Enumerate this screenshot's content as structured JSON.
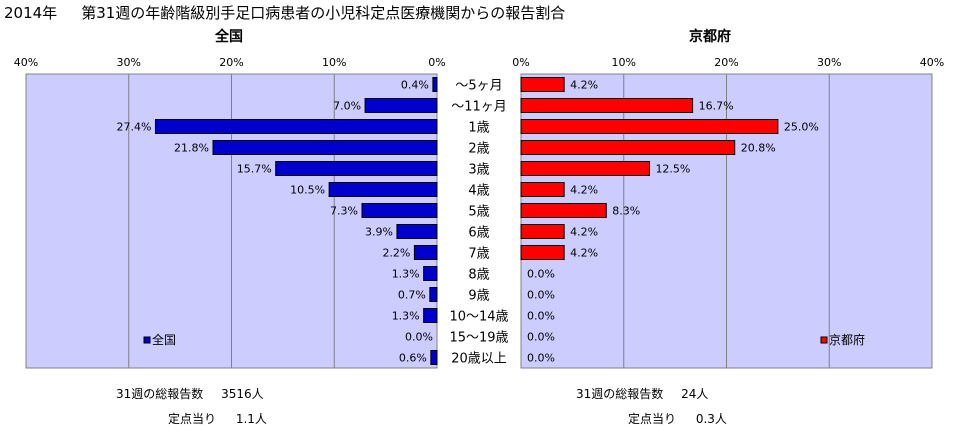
{
  "header": {
    "year": "2014年",
    "title": "第31週の年齢階級別手足口病患者の小児科定点医療機関からの報告割合"
  },
  "chart_data": [
    {
      "type": "bar",
      "orientation": "horizontal",
      "title": "全国",
      "legend": "全国",
      "legend_position": "bottom-left",
      "xlim": [
        0,
        40
      ],
      "ticks": [
        "40%",
        "30%",
        "20%",
        "10%",
        "0%"
      ],
      "direction": "reversed",
      "color": "#0000cc",
      "grid": true,
      "categories": [
        "〜5ヶ月",
        "〜11ヶ月",
        "1歳",
        "2歳",
        "3歳",
        "4歳",
        "5歳",
        "6歳",
        "7歳",
        "8歳",
        "9歳",
        "10〜14歳",
        "15〜19歳",
        "20歳以上"
      ],
      "values": [
        0.4,
        7.0,
        27.4,
        21.8,
        15.7,
        10.5,
        7.3,
        3.9,
        2.2,
        1.3,
        0.7,
        1.3,
        0.0,
        0.6
      ],
      "labels": [
        "0.4%",
        "7.0%",
        "27.4%",
        "21.8%",
        "15.7%",
        "10.5%",
        "7.3%",
        "3.9%",
        "2.2%",
        "1.3%",
        "0.7%",
        "1.3%",
        "0.0%",
        "0.6%"
      ]
    },
    {
      "type": "bar",
      "orientation": "horizontal",
      "title": "京都府",
      "legend": "京都府",
      "legend_position": "bottom-right",
      "xlim": [
        0,
        40
      ],
      "ticks": [
        "0%",
        "10%",
        "20%",
        "30%",
        "40%"
      ],
      "direction": "normal",
      "color": "#ff0000",
      "grid": true,
      "categories": [
        "〜5ヶ月",
        "〜11ヶ月",
        "1歳",
        "2歳",
        "3歳",
        "4歳",
        "5歳",
        "6歳",
        "7歳",
        "8歳",
        "9歳",
        "10〜14歳",
        "15〜19歳",
        "20歳以上"
      ],
      "values": [
        4.2,
        16.7,
        25.0,
        20.8,
        12.5,
        4.2,
        8.3,
        4.2,
        4.2,
        0.0,
        0.0,
        0.0,
        0.0,
        0.0
      ],
      "labels": [
        "4.2%",
        "16.7%",
        "25.0%",
        "20.8%",
        "12.5%",
        "4.2%",
        "8.3%",
        "4.2%",
        "4.2%",
        "0.0%",
        "0.0%",
        "0.0%",
        "0.0%",
        "0.0%"
      ]
    }
  ],
  "footer": {
    "national": {
      "total_label": "31週の総報告数",
      "total_value": "3516人",
      "per_label": "定点当り",
      "per_value": "1.1人"
    },
    "kyoto": {
      "total_label": "31週の総報告数",
      "total_value": "24人",
      "per_label": "定点当り",
      "per_value": "0.3人"
    }
  }
}
